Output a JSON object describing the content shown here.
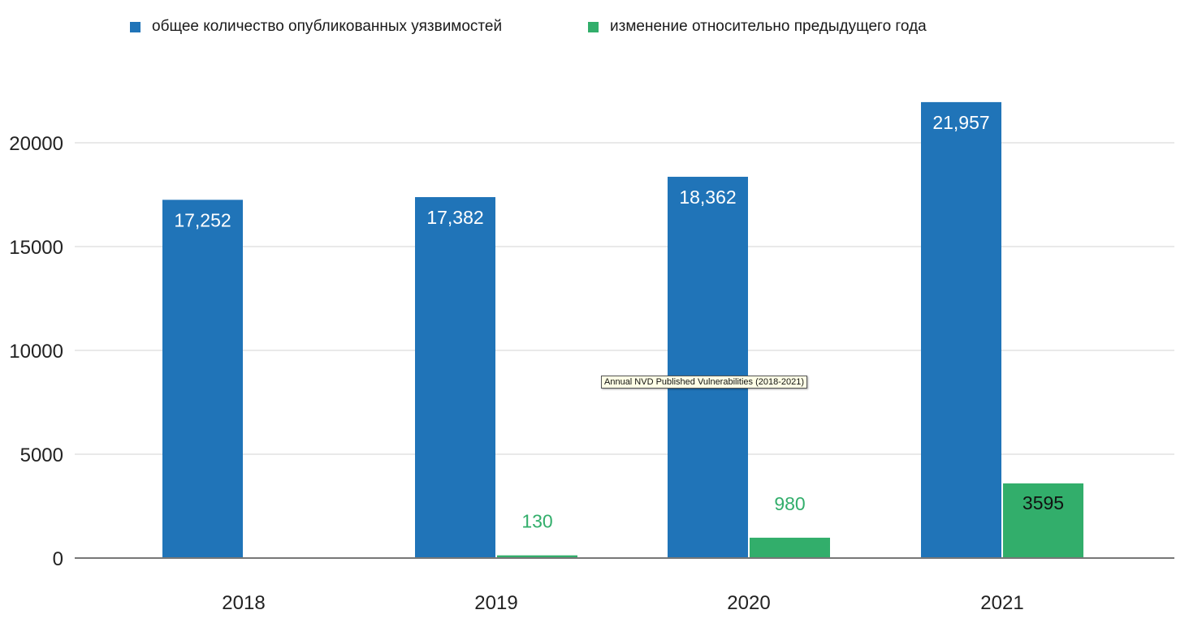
{
  "legend": {
    "total_label": "общее количество опубликованных уязвимостей",
    "change_label": "изменение относительно предыдущего года"
  },
  "tooltip": "Annual NVD Published Vulnerabilities (2018-2021)",
  "colors": {
    "total": "#2074b8",
    "change": "#32ae6b",
    "grid": "#e2e2e2",
    "axis": "#777777"
  },
  "chart_data": {
    "type": "bar",
    "categories": [
      "2018",
      "2019",
      "2020",
      "2021"
    ],
    "series": [
      {
        "name": "общее количество опубликованных уязвимостей",
        "values": [
          17252,
          17382,
          18362,
          21957
        ],
        "labels": [
          "17,252",
          "17,382",
          "18,362",
          "21,957"
        ]
      },
      {
        "name": "изменение относительно предыдущего года",
        "values": [
          null,
          130,
          980,
          3595
        ],
        "labels": [
          null,
          "130",
          "980",
          "3595"
        ]
      }
    ],
    "yticks": [
      0,
      5000,
      10000,
      15000,
      20000
    ],
    "ylim": [
      0,
      22500
    ],
    "grid": true,
    "legend_position": "top"
  }
}
